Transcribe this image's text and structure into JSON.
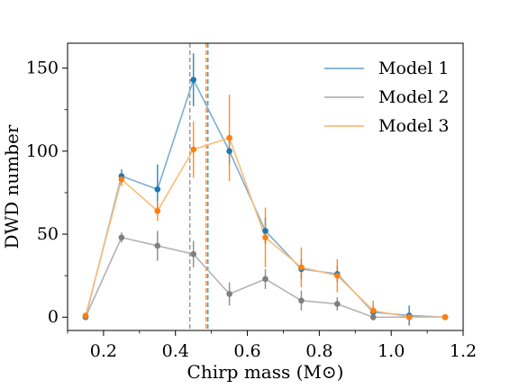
{
  "chart_data": {
    "type": "line",
    "xlabel": "Chirp mass (M⊙)",
    "ylabel": "DWD number",
    "xlim": [
      0.1,
      1.2
    ],
    "ylim": [
      -8,
      165
    ],
    "x_ticks": [
      0.2,
      0.4,
      0.6,
      0.8,
      1.0,
      1.2
    ],
    "x_tick_labels": [
      "0.2",
      "0.4",
      "0.6",
      "0.8",
      "1.0",
      "1.2"
    ],
    "y_ticks": [
      0,
      50,
      100,
      150
    ],
    "y_tick_labels": [
      "0",
      "50",
      "100",
      "150"
    ],
    "grid": false,
    "legend_position": "top-right",
    "x": [
      0.15,
      0.25,
      0.35,
      0.45,
      0.55,
      0.65,
      0.75,
      0.85,
      0.95,
      1.05,
      1.15
    ],
    "series": [
      {
        "name": "Model 1",
        "line_color": "#7aaed3",
        "marker_color": "#1f77b4",
        "values": [
          0,
          85,
          77,
          143,
          100,
          52,
          29,
          26,
          3,
          1,
          0
        ],
        "errors": [
          0,
          4,
          15,
          16,
          8,
          8,
          6,
          5,
          4,
          6,
          0
        ],
        "median": 0.49
      },
      {
        "name": "Model 2",
        "line_color": "#b3b3b3",
        "marker_color": "#7f7f7f",
        "values": [
          0,
          48,
          43,
          38,
          14,
          23,
          10,
          8,
          0,
          0,
          0
        ],
        "errors": [
          0,
          3,
          9,
          8,
          7,
          6,
          6,
          4,
          0,
          0,
          0
        ],
        "median": 0.44
      },
      {
        "name": "Model 3",
        "line_color": "#ffbb78",
        "marker_color": "#ff7f0e",
        "values": [
          1,
          83,
          64,
          101,
          108,
          48,
          30,
          25,
          4,
          0,
          0
        ],
        "errors": [
          0,
          4,
          6,
          17,
          26,
          18,
          12,
          10,
          6,
          0,
          0
        ],
        "median": 0.485
      }
    ]
  }
}
